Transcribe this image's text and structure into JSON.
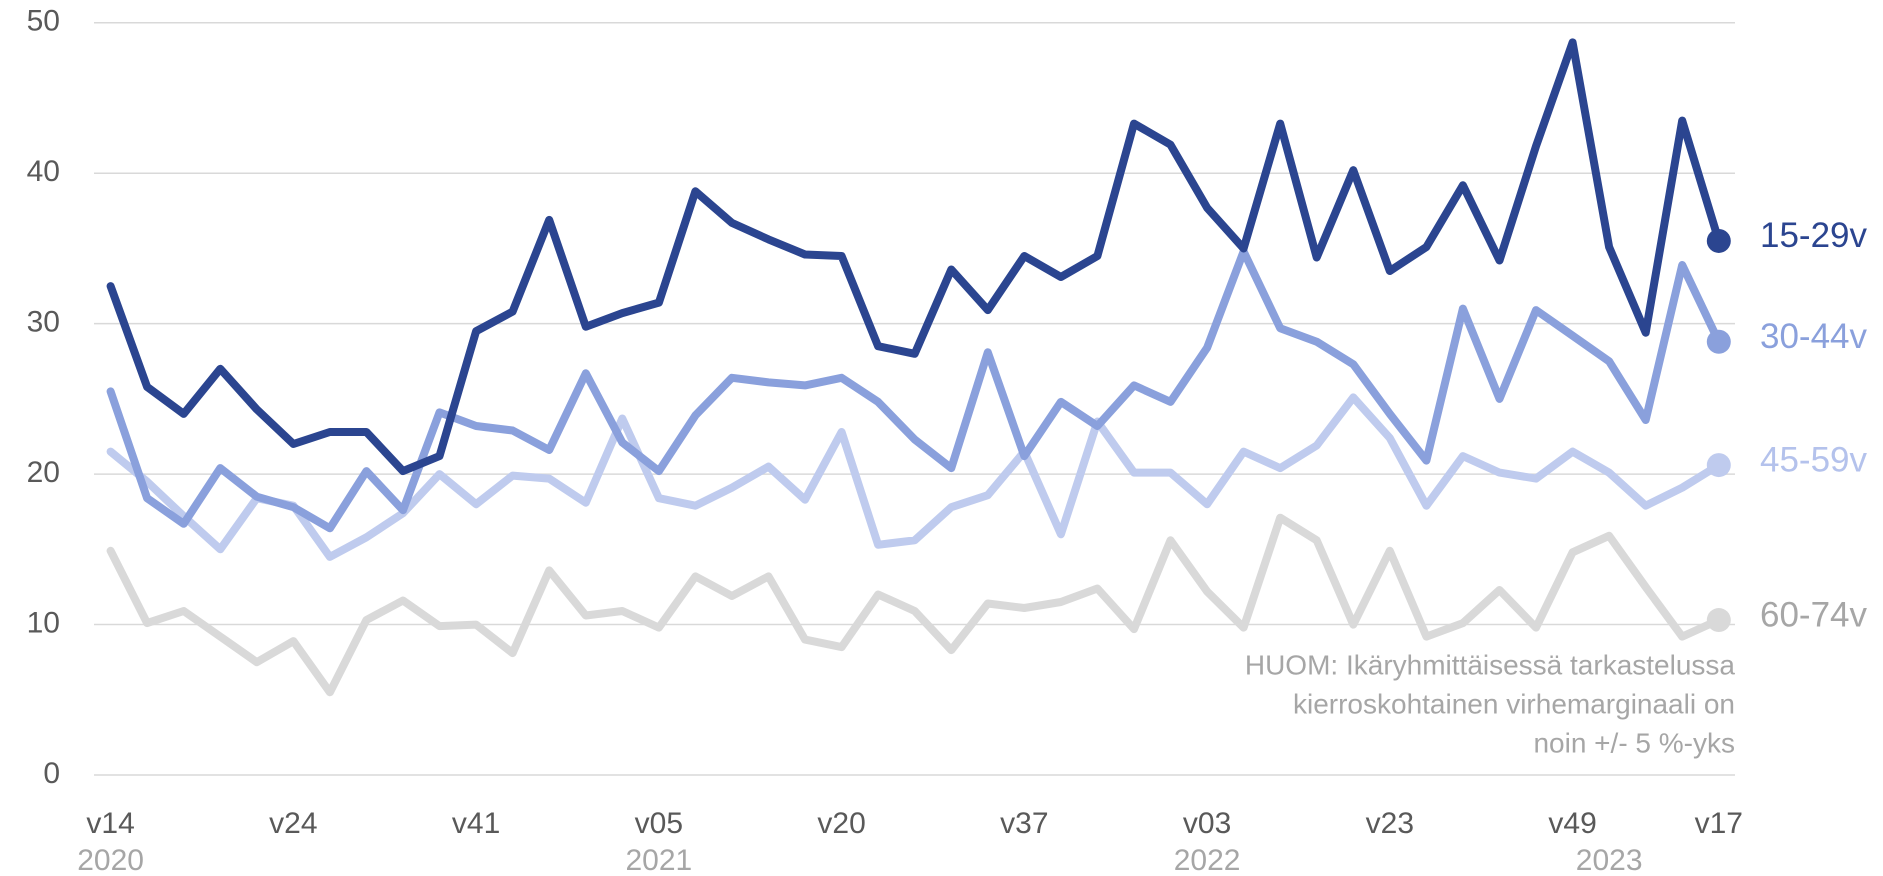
{
  "chart_data": {
    "type": "line",
    "categories": [
      "v14",
      null,
      null,
      null,
      null,
      "v24",
      null,
      null,
      null,
      null,
      "v41",
      null,
      null,
      null,
      null,
      "v05",
      null,
      null,
      null,
      null,
      "v20",
      null,
      null,
      null,
      null,
      "v37",
      null,
      null,
      null,
      null,
      "v03",
      null,
      null,
      null,
      null,
      "v23",
      null,
      null,
      null,
      null,
      "v49",
      null,
      null,
      null,
      "v17"
    ],
    "years": [
      "2020",
      null,
      null,
      null,
      null,
      null,
      null,
      null,
      null,
      null,
      null,
      null,
      null,
      null,
      null,
      "2021",
      null,
      null,
      null,
      null,
      null,
      null,
      null,
      null,
      null,
      null,
      null,
      null,
      null,
      null,
      "2022",
      null,
      null,
      null,
      null,
      null,
      null,
      null,
      null,
      null,
      null,
      "2023",
      null,
      null,
      null
    ],
    "series": [
      {
        "name": "15-29v",
        "color": "#2b4590",
        "label_color": "#2b4590",
        "values": [
          32.5,
          25.8,
          24,
          27,
          24.3,
          22,
          22.8,
          22.8,
          20.2,
          21.2,
          29.5,
          30.8,
          36.9,
          29.8,
          30.7,
          31.4,
          38.8,
          36.7,
          35.6,
          34.6,
          34.5,
          28.5,
          28,
          33.6,
          30.9,
          34.5,
          33.1,
          34.5,
          43.3,
          41.9,
          37.7,
          35,
          43.3,
          34.4,
          40.2,
          33.5,
          35.1,
          39.2,
          34.2,
          41.8,
          48.7,
          35.1,
          29.4,
          43.5,
          35.5
        ]
      },
      {
        "name": "30-44v",
        "color": "#8aa0dc",
        "label_color": "#8aa0dc",
        "values": [
          25.5,
          18.4,
          16.7,
          20.4,
          18.5,
          17.8,
          16.4,
          20.2,
          17.6,
          24.1,
          23.2,
          22.9,
          21.6,
          26.7,
          22.1,
          20.2,
          23.9,
          26.4,
          26.1,
          25.9,
          26.4,
          24.8,
          22.3,
          20.4,
          28.1,
          21.2,
          24.8,
          23.2,
          25.9,
          24.8,
          28.4,
          34.8,
          29.7,
          28.8,
          27.3,
          24,
          20.9,
          31,
          25,
          30.9,
          29.2,
          27.5,
          23.6,
          33.9,
          28.8
        ]
      },
      {
        "name": "45-59v",
        "color": "#bfcbee",
        "label_color": "#b4c2ec",
        "values": [
          21.5,
          19.5,
          17.2,
          15,
          18.4,
          17.9,
          14.5,
          15.8,
          17.4,
          20,
          18,
          19.9,
          19.7,
          18.1,
          23.7,
          18.4,
          17.9,
          19.1,
          20.5,
          18.3,
          22.8,
          15.3,
          15.6,
          17.8,
          18.6,
          21.5,
          16,
          23.5,
          20.1,
          20.1,
          18,
          21.5,
          20.4,
          21.9,
          25.1,
          22.4,
          17.9,
          21.2,
          20.1,
          19.7,
          21.5,
          20.1,
          17.9,
          19.1,
          20.6
        ]
      },
      {
        "name": "60-74v",
        "color": "#d9d9d9",
        "label_color": "#a6a6a6",
        "values": [
          14.9,
          10.1,
          10.9,
          9.2,
          7.5,
          8.9,
          5.5,
          10.3,
          11.6,
          9.9,
          10,
          8.1,
          13.6,
          10.6,
          10.9,
          9.8,
          13.2,
          11.9,
          13.2,
          9,
          8.5,
          12,
          10.9,
          8.3,
          11.4,
          11.1,
          11.5,
          12.4,
          9.7,
          15.6,
          12.2,
          9.8,
          17.1,
          15.6,
          10,
          14.9,
          9.2,
          10.1,
          12.3,
          9.8,
          14.8,
          15.9,
          12.5,
          9.2,
          10.3
        ]
      }
    ],
    "ylim": [
      0,
      50
    ],
    "yticks": [
      0,
      10,
      20,
      30,
      40,
      50
    ],
    "grid": true,
    "note": [
      "HUOM: Ikäryhmittäisessä tarkastelussa",
      "kierroskohtainen virhemarginaali on",
      "noin +/- 5 %-yks"
    ]
  }
}
